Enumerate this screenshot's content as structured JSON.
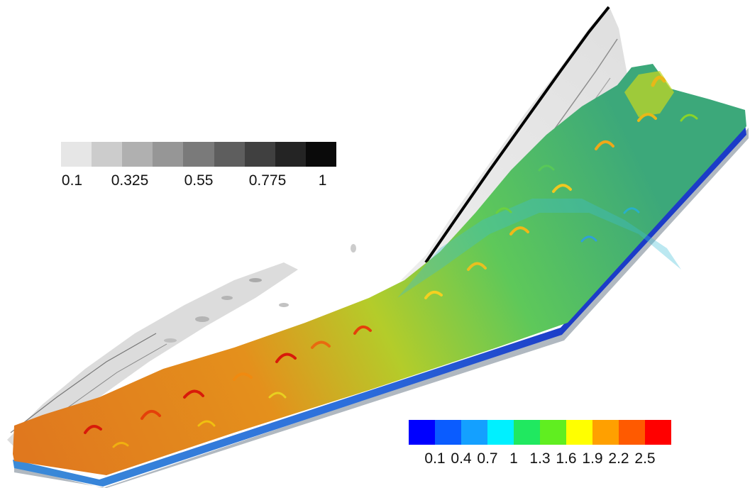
{
  "figure": {
    "gray_legend": {
      "labels": [
        "0.1",
        "0.325",
        "0.55",
        "0.775",
        "1"
      ],
      "colors": [
        "#e6e6e6",
        "#cccccc",
        "#b0b0b0",
        "#969696",
        "#7a7a7a",
        "#5e5e5e",
        "#404040",
        "#242424",
        "#0a0a0a"
      ]
    },
    "color_legend": {
      "labels": [
        "0.1",
        "0.4",
        "0.7",
        "1",
        "1.3",
        "1.6",
        "1.9",
        "2.2",
        "2.5"
      ],
      "colors": [
        "#0000ff",
        "#0a5cff",
        "#14a0ff",
        "#00f0ff",
        "#20e860",
        "#60ee20",
        "#ffff00",
        "#ffa000",
        "#ff5a00",
        "#ff0000"
      ]
    }
  }
}
